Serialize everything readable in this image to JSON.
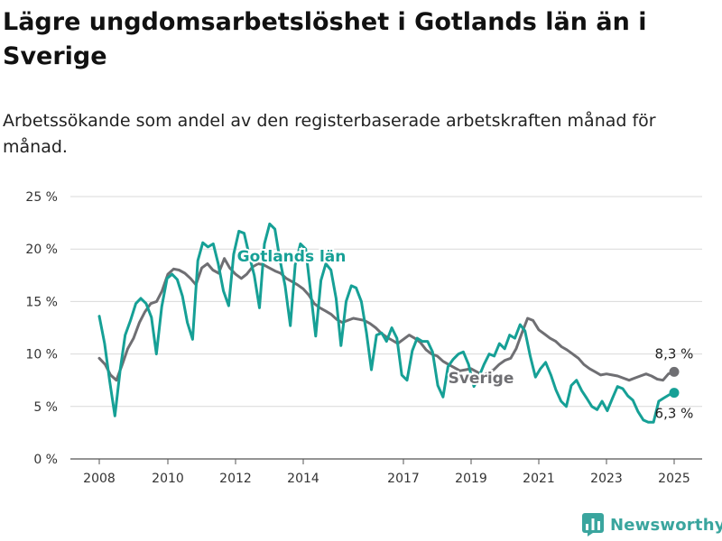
{
  "header": {
    "title": "Lägre ungdomsarbetslöshet i Gotlands län än i Sverige",
    "subtitle": "Arbetssökande som andel av den registerbaserade arbetskraften månad för månad."
  },
  "brand": {
    "name": "Newsworthy",
    "icon": "bar-chart-logo-icon",
    "color": "#3aa59e"
  },
  "chart_data": {
    "type": "line",
    "ylim": [
      0,
      25
    ],
    "yticks": [
      0,
      5,
      10,
      15,
      20,
      25
    ],
    "ytick_labels": [
      "0 %",
      "5 %",
      "10 %",
      "15 %",
      "20 %",
      "25 %"
    ],
    "xlim": [
      2007.7,
      2025.7
    ],
    "xticks": [
      2008,
      2010,
      2012,
      2014,
      2017,
      2019,
      2021,
      2023,
      2025
    ],
    "xtick_labels": [
      "2008",
      "2010",
      "2012",
      "2014",
      "2017",
      "2019",
      "2021",
      "2023",
      "2025"
    ],
    "grid": true,
    "series": [
      {
        "name": "Sverige",
        "color": "#6f6f73",
        "end_label": "8,3 %",
        "points": [
          [
            2008.0,
            9.6
          ],
          [
            2008.17,
            9.0
          ],
          [
            2008.33,
            8.0
          ],
          [
            2008.5,
            7.5
          ],
          [
            2008.67,
            9.0
          ],
          [
            2008.83,
            10.5
          ],
          [
            2009.0,
            11.5
          ],
          [
            2009.17,
            13.0
          ],
          [
            2009.33,
            14.0
          ],
          [
            2009.5,
            14.8
          ],
          [
            2009.67,
            15.0
          ],
          [
            2009.83,
            16.0
          ],
          [
            2010.0,
            17.6
          ],
          [
            2010.17,
            18.1
          ],
          [
            2010.33,
            18.0
          ],
          [
            2010.5,
            17.7
          ],
          [
            2010.67,
            17.2
          ],
          [
            2010.83,
            16.6
          ],
          [
            2011.0,
            18.2
          ],
          [
            2011.17,
            18.6
          ],
          [
            2011.33,
            18.0
          ],
          [
            2011.5,
            17.7
          ],
          [
            2011.67,
            19.1
          ],
          [
            2011.83,
            18.2
          ],
          [
            2012.0,
            17.6
          ],
          [
            2012.17,
            17.2
          ],
          [
            2012.33,
            17.6
          ],
          [
            2012.5,
            18.3
          ],
          [
            2012.67,
            18.6
          ],
          [
            2012.83,
            18.5
          ],
          [
            2013.0,
            18.2
          ],
          [
            2013.17,
            17.9
          ],
          [
            2013.33,
            17.7
          ],
          [
            2013.5,
            17.2
          ],
          [
            2013.67,
            16.9
          ],
          [
            2013.83,
            16.6
          ],
          [
            2014.0,
            16.2
          ],
          [
            2014.17,
            15.6
          ],
          [
            2014.33,
            14.8
          ],
          [
            2014.5,
            14.4
          ],
          [
            2014.67,
            14.1
          ],
          [
            2014.83,
            13.8
          ],
          [
            2015.0,
            13.3
          ],
          [
            2015.17,
            13.0
          ],
          [
            2015.33,
            13.2
          ],
          [
            2015.5,
            13.4
          ],
          [
            2015.67,
            13.3
          ],
          [
            2015.83,
            13.2
          ],
          [
            2016.0,
            12.9
          ],
          [
            2016.17,
            12.5
          ],
          [
            2016.33,
            12.0
          ],
          [
            2016.5,
            11.6
          ],
          [
            2016.67,
            11.3
          ],
          [
            2016.83,
            11.0
          ],
          [
            2017.0,
            11.4
          ],
          [
            2017.17,
            11.8
          ],
          [
            2017.33,
            11.5
          ],
          [
            2017.5,
            11.1
          ],
          [
            2017.67,
            10.4
          ],
          [
            2017.83,
            10.0
          ],
          [
            2018.0,
            9.8
          ],
          [
            2018.17,
            9.3
          ],
          [
            2018.33,
            9.0
          ],
          [
            2018.5,
            8.7
          ],
          [
            2018.67,
            8.4
          ],
          [
            2018.83,
            8.5
          ],
          [
            2019.0,
            8.6
          ],
          [
            2019.17,
            8.3
          ],
          [
            2019.33,
            8.0
          ],
          [
            2019.5,
            8.2
          ],
          [
            2019.67,
            8.5
          ],
          [
            2019.83,
            9.0
          ],
          [
            2020.0,
            9.4
          ],
          [
            2020.17,
            9.6
          ],
          [
            2020.33,
            10.5
          ],
          [
            2020.5,
            12.0
          ],
          [
            2020.67,
            13.4
          ],
          [
            2020.83,
            13.2
          ],
          [
            2021.0,
            12.3
          ],
          [
            2021.17,
            11.9
          ],
          [
            2021.33,
            11.5
          ],
          [
            2021.5,
            11.2
          ],
          [
            2021.67,
            10.7
          ],
          [
            2021.83,
            10.4
          ],
          [
            2022.0,
            10.0
          ],
          [
            2022.17,
            9.6
          ],
          [
            2022.33,
            9.0
          ],
          [
            2022.5,
            8.6
          ],
          [
            2022.67,
            8.3
          ],
          [
            2022.83,
            8.0
          ],
          [
            2023.0,
            8.1
          ],
          [
            2023.17,
            8.0
          ],
          [
            2023.33,
            7.9
          ],
          [
            2023.5,
            7.7
          ],
          [
            2023.67,
            7.5
          ],
          [
            2023.83,
            7.7
          ],
          [
            2024.0,
            7.9
          ],
          [
            2024.17,
            8.1
          ],
          [
            2024.33,
            7.9
          ],
          [
            2024.5,
            7.6
          ],
          [
            2024.67,
            7.5
          ],
          [
            2024.83,
            8.1
          ],
          [
            2025.0,
            8.3
          ]
        ]
      },
      {
        "name": "Gotlands län",
        "color": "#16a096",
        "end_label": "6,3 %",
        "points": [
          [
            2008.0,
            13.6
          ],
          [
            2008.17,
            11.0
          ],
          [
            2008.33,
            7.5
          ],
          [
            2008.5,
            4.1
          ],
          [
            2008.67,
            8.5
          ],
          [
            2008.83,
            11.8
          ],
          [
            2009.0,
            13.2
          ],
          [
            2009.17,
            14.8
          ],
          [
            2009.33,
            15.3
          ],
          [
            2009.5,
            14.8
          ],
          [
            2009.67,
            13.5
          ],
          [
            2009.83,
            10.0
          ],
          [
            2010.0,
            14.5
          ],
          [
            2010.17,
            17.2
          ],
          [
            2010.33,
            17.6
          ],
          [
            2010.5,
            17.1
          ],
          [
            2010.67,
            15.5
          ],
          [
            2010.83,
            13.0
          ],
          [
            2011.0,
            11.4
          ],
          [
            2011.17,
            18.9
          ],
          [
            2011.33,
            20.6
          ],
          [
            2011.5,
            20.2
          ],
          [
            2011.67,
            20.5
          ],
          [
            2011.83,
            18.6
          ],
          [
            2012.0,
            16.0
          ],
          [
            2012.17,
            14.6
          ],
          [
            2012.33,
            19.5
          ],
          [
            2012.5,
            21.7
          ],
          [
            2012.67,
            21.5
          ],
          [
            2012.83,
            19.5
          ],
          [
            2013.0,
            17.5
          ],
          [
            2013.17,
            14.4
          ],
          [
            2013.33,
            20.5
          ],
          [
            2013.5,
            22.4
          ],
          [
            2013.67,
            21.9
          ],
          [
            2013.83,
            19.0
          ],
          [
            2014.0,
            16.5
          ],
          [
            2014.17,
            12.7
          ],
          [
            2014.33,
            18.5
          ],
          [
            2014.5,
            20.5
          ],
          [
            2014.67,
            20.0
          ],
          [
            2014.83,
            16.0
          ],
          [
            2015.0,
            11.7
          ],
          [
            2015.17,
            17.0
          ],
          [
            2015.33,
            18.6
          ],
          [
            2015.5,
            18.0
          ],
          [
            2015.67,
            15.3
          ],
          [
            2015.83,
            10.8
          ],
          [
            2016.0,
            15.0
          ],
          [
            2016.17,
            16.5
          ],
          [
            2016.33,
            16.3
          ],
          [
            2016.5,
            15.0
          ],
          [
            2016.67,
            12.0
          ],
          [
            2016.83,
            8.5
          ],
          [
            2017.0,
            11.8
          ],
          [
            2017.17,
            12.0
          ],
          [
            2017.33,
            11.2
          ],
          [
            2017.5,
            12.5
          ],
          [
            2017.67,
            11.5
          ],
          [
            2017.83,
            8.0
          ],
          [
            2018.0,
            7.5
          ],
          [
            2018.17,
            10.3
          ],
          [
            2018.33,
            11.5
          ],
          [
            2018.5,
            11.2
          ],
          [
            2018.67,
            11.2
          ],
          [
            2018.83,
            10.2
          ],
          [
            2019.0,
            7.0
          ],
          [
            2019.17,
            5.9
          ],
          [
            2019.33,
            8.8
          ],
          [
            2019.5,
            9.5
          ],
          [
            2019.67,
            10.0
          ],
          [
            2019.83,
            10.2
          ],
          [
            2020.0,
            9.0
          ],
          [
            2020.17,
            6.9
          ],
          [
            2020.33,
            7.8
          ],
          [
            2020.5,
            9.0
          ],
          [
            2020.67,
            10.0
          ],
          [
            2020.83,
            9.8
          ],
          [
            2021.0,
            11.0
          ],
          [
            2021.17,
            10.5
          ],
          [
            2021.33,
            11.8
          ],
          [
            2021.5,
            11.5
          ],
          [
            2021.67,
            12.8
          ],
          [
            2021.83,
            12.2
          ],
          [
            2022.0,
            9.8
          ],
          [
            2022.17,
            7.8
          ],
          [
            2022.33,
            8.6
          ],
          [
            2022.5,
            9.2
          ],
          [
            2022.67,
            8.0
          ],
          [
            2022.83,
            6.6
          ],
          [
            2023.0,
            5.5
          ],
          [
            2023.17,
            5.0
          ],
          [
            2023.33,
            7.0
          ],
          [
            2023.5,
            7.5
          ],
          [
            2023.67,
            6.5
          ],
          [
            2023.83,
            5.8
          ],
          [
            2024.0,
            5.0
          ],
          [
            2024.17,
            4.7
          ],
          [
            2024.33,
            5.5
          ],
          [
            2024.5,
            4.6
          ],
          [
            2024.67,
            5.8
          ],
          [
            2024.83,
            6.9
          ],
          [
            2025.0,
            6.7
          ],
          [
            2025.17,
            6.0
          ],
          [
            2025.33,
            5.6
          ],
          [
            2025.5,
            4.5
          ],
          [
            2025.67,
            3.7
          ],
          [
            2025.83,
            3.5
          ],
          [
            2026.0,
            3.5
          ],
          [
            2026.17,
            5.5
          ],
          [
            2026.33,
            5.8
          ],
          [
            2026.5,
            6.1
          ],
          [
            2026.67,
            6.3
          ]
        ]
      }
    ],
    "annotations": [
      {
        "text": "Gotlands län",
        "series": "Gotlands län"
      },
      {
        "text": "Sverige",
        "series": "Sverige"
      }
    ]
  }
}
